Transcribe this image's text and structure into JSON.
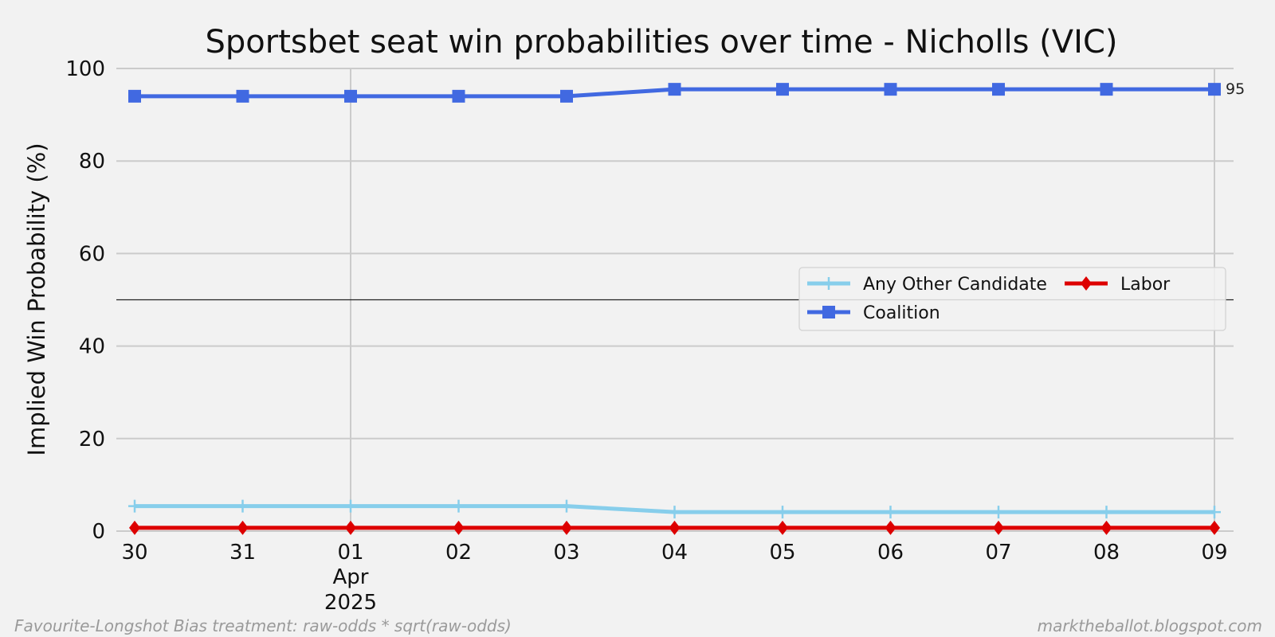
{
  "chart_data": {
    "type": "line",
    "title": "Sportsbet seat win probabilities over time - Nicholls (VIC)",
    "ylabel": "Implied Win Probability (%)",
    "xlabel": "",
    "ylim": [
      0,
      100
    ],
    "yticks": [
      "0",
      "20",
      "40",
      "60",
      "80",
      "100"
    ],
    "x": [
      "30",
      "31",
      "01",
      "02",
      "03",
      "04",
      "05",
      "06",
      "07",
      "08",
      "09"
    ],
    "x_month_label": "Apr",
    "x_year_label": "2025",
    "reference_line": 50,
    "grid": true,
    "legend_position": "center-right",
    "series": [
      {
        "name": "Any Other Candidate",
        "color": "#87ceeb",
        "marker": "plus",
        "values": [
          5.4,
          5.4,
          5.4,
          5.4,
          5.4,
          4.1,
          4.1,
          4.1,
          4.1,
          4.1,
          4.1
        ]
      },
      {
        "name": "Coalition",
        "color": "#4169e1",
        "marker": "square",
        "values": [
          94.0,
          94.0,
          94.0,
          94.0,
          94.0,
          95.5,
          95.5,
          95.5,
          95.5,
          95.5,
          95.5
        ]
      },
      {
        "name": "Labor",
        "color": "#dd0000",
        "marker": "diamond",
        "values": [
          0.7,
          0.7,
          0.7,
          0.7,
          0.7,
          0.7,
          0.7,
          0.7,
          0.7,
          0.7,
          0.7
        ]
      }
    ],
    "end_label": "95"
  },
  "footer": {
    "left": "Favourite-Longshot Bias treatment: raw-odds * sqrt(raw-odds)",
    "right": "marktheballot.blogspot.com"
  }
}
